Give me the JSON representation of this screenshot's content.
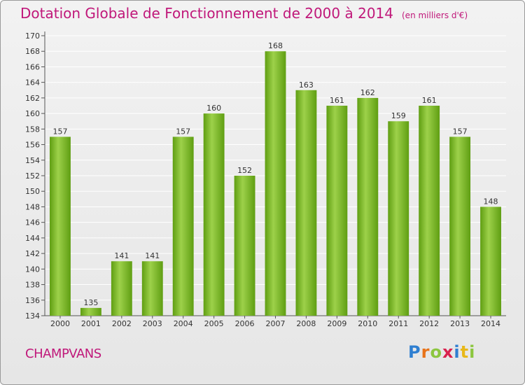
{
  "title": "Dotation Globale de Fonctionnement de 2000 à 2014",
  "subtitle": "(en milliers d'€)",
  "commune": "CHAMPVANS",
  "logo_text": "Proxiti",
  "colors": {
    "bar_light": "#9dd14a",
    "bar_dark": "#5f9e12",
    "title": "#c0187a",
    "grid": "#ffffff",
    "axis_text": "#333333"
  },
  "chart_data": {
    "type": "bar",
    "title": "Dotation Globale de Fonctionnement de 2000 à 2014",
    "xlabel": "",
    "ylabel": "",
    "categories": [
      "2000",
      "2001",
      "2002",
      "2003",
      "2004",
      "2005",
      "2006",
      "2007",
      "2008",
      "2009",
      "2010",
      "2011",
      "2012",
      "2013",
      "2014"
    ],
    "values": [
      157,
      135,
      141,
      141,
      157,
      160,
      152,
      168,
      163,
      161,
      162,
      159,
      161,
      157,
      148
    ],
    "ylim": [
      134,
      170
    ],
    "yticks": [
      134,
      136,
      138,
      140,
      142,
      144,
      146,
      148,
      150,
      152,
      154,
      156,
      158,
      160,
      162,
      164,
      166,
      168,
      170
    ],
    "grid": true,
    "data_labels": true
  }
}
